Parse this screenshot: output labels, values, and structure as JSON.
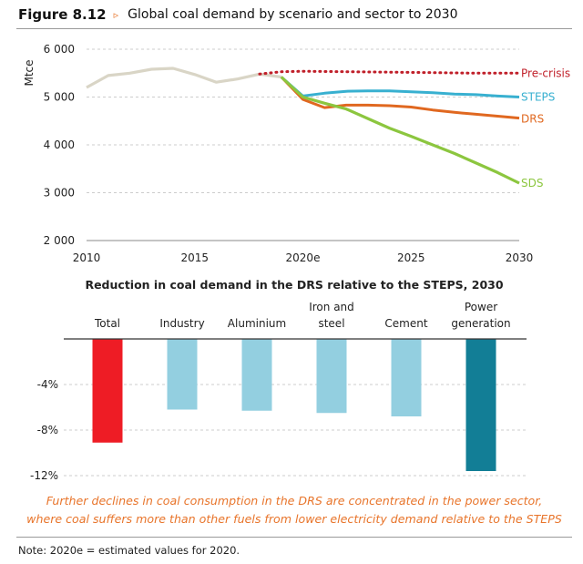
{
  "header": {
    "figure_number": "Figure 8.12",
    "arrow": "▹",
    "title": "Global coal demand by scenario and sector to 2030"
  },
  "colors": {
    "pre_crisis": "#c0202a",
    "steps": "#38b0d0",
    "drs": "#e06820",
    "sds": "#8cc63f",
    "historical": "#d9d5c6",
    "total": "#ee1c25",
    "sectors_light": "#93cfe0",
    "power_generation": "#127e96",
    "caption": "#e8742a"
  },
  "chart_data": [
    {
      "type": "line",
      "ylabel": "Mtce",
      "ylim": [
        2000,
        6000
      ],
      "yticks": [
        "2 000",
        "3 000",
        "4 000",
        "5 000",
        "6 000"
      ],
      "ytick_values": [
        2000,
        3000,
        4000,
        5000,
        6000
      ],
      "xlim": [
        2010,
        2030
      ],
      "xticks": [
        "2010",
        "2015",
        "2020e",
        "2025",
        "2030"
      ],
      "xtick_values": [
        2010,
        2015,
        2020,
        2025,
        2030
      ],
      "series": [
        {
          "name": "",
          "values": [
            [
              2010,
              5200
            ],
            [
              2011,
              5450
            ],
            [
              2012,
              5500
            ],
            [
              2013,
              5580
            ],
            [
              2014,
              5600
            ],
            [
              2015,
              5470
            ],
            [
              2016,
              5310
            ],
            [
              2017,
              5380
            ],
            [
              2018,
              5480
            ],
            [
              2019,
              5420
            ]
          ]
        },
        {
          "name": "Pre-crisis",
          "values": [
            [
              2018,
              5480
            ],
            [
              2019,
              5530
            ],
            [
              2020,
              5540
            ],
            [
              2022,
              5530
            ],
            [
              2024,
              5520
            ],
            [
              2026,
              5510
            ],
            [
              2028,
              5500
            ],
            [
              2030,
              5500
            ]
          ]
        },
        {
          "name": "STEPS",
          "values": [
            [
              2019,
              5420
            ],
            [
              2020,
              5020
            ],
            [
              2021,
              5080
            ],
            [
              2022,
              5120
            ],
            [
              2023,
              5130
            ],
            [
              2024,
              5130
            ],
            [
              2025,
              5110
            ],
            [
              2026,
              5090
            ],
            [
              2027,
              5060
            ],
            [
              2028,
              5050
            ],
            [
              2029,
              5020
            ],
            [
              2030,
              5000
            ]
          ]
        },
        {
          "name": "DRS",
          "values": [
            [
              2019,
              5420
            ],
            [
              2020,
              4950
            ],
            [
              2021,
              4780
            ],
            [
              2022,
              4830
            ],
            [
              2023,
              4830
            ],
            [
              2024,
              4820
            ],
            [
              2025,
              4790
            ],
            [
              2026,
              4730
            ],
            [
              2027,
              4680
            ],
            [
              2028,
              4640
            ],
            [
              2029,
              4600
            ],
            [
              2030,
              4560
            ]
          ]
        },
        {
          "name": "SDS",
          "values": [
            [
              2019,
              5420
            ],
            [
              2020,
              5000
            ],
            [
              2021,
              4870
            ],
            [
              2022,
              4750
            ],
            [
              2023,
              4550
            ],
            [
              2024,
              4350
            ],
            [
              2025,
              4180
            ],
            [
              2026,
              4000
            ],
            [
              2027,
              3820
            ],
            [
              2028,
              3620
            ],
            [
              2029,
              3420
            ],
            [
              2030,
              3200
            ]
          ]
        }
      ]
    },
    {
      "type": "bar",
      "title": "Reduction in coal demand in the DRS relative to the STEPS, 2030",
      "categories": [
        [
          "Total"
        ],
        [
          "Industry"
        ],
        [
          "Aluminium"
        ],
        [
          "Iron and",
          "steel"
        ],
        [
          "Cement"
        ],
        [
          "Power",
          "generation"
        ]
      ],
      "values": [
        -9.1,
        -6.2,
        -6.3,
        -6.5,
        -6.8,
        -11.6
      ],
      "ylim": [
        -12,
        0
      ],
      "yticks": [
        "-4%",
        "-8%",
        "-12%"
      ],
      "ytick_values": [
        -4,
        -8,
        -12
      ]
    }
  ],
  "caption": {
    "line1": "Further declines in coal consumption in the DRS are concentrated in the power sector,",
    "line2": "where coal suffers more than other fuels from lower electricity demand relative to the STEPS"
  },
  "note": "Note: 2020e = estimated values for 2020."
}
